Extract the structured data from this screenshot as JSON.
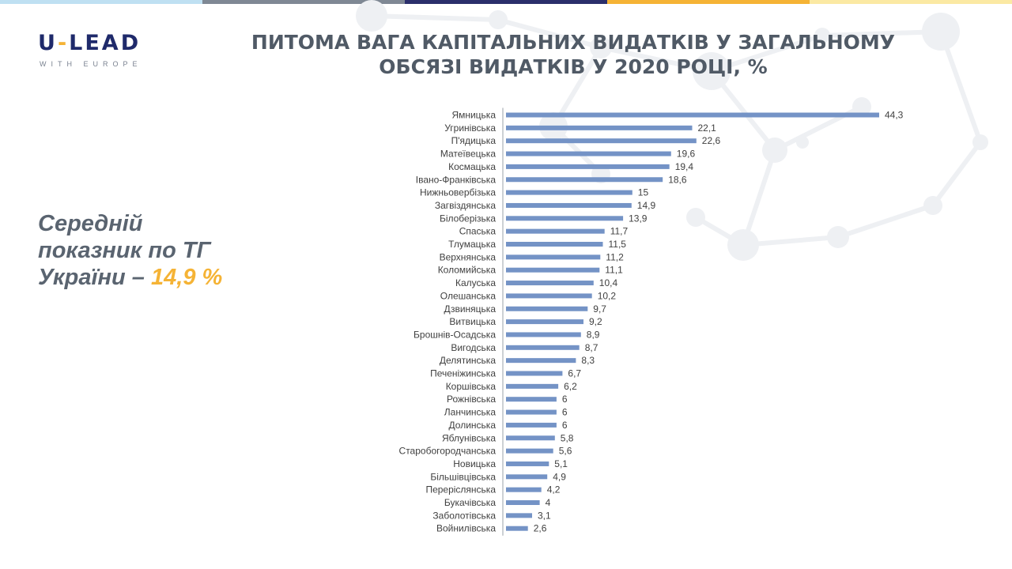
{
  "logo": {
    "main_left": "U",
    "main_dash": "-",
    "main_right": "LEAD",
    "sub": "WITH EUROPE"
  },
  "title": {
    "line1": "ПИТОМА ВАГА КАПІТАЛЬНИХ ВИДАТКІВ У ЗАГАЛЬНОМУ",
    "line2": "ОБСЯЗІ ВИДАТКІВ У 2020 РОЦІ, %"
  },
  "average": {
    "line1": "Середній",
    "line2": "показник по ТГ",
    "line3_prefix": "України – ",
    "value": "14,9 %"
  },
  "colors": {
    "bar": "#7493c6",
    "title": "#505a66",
    "accent": "#f5b335",
    "logo": "#1f2a6b",
    "topbar": [
      "#bfe0f2",
      "#7f8894",
      "#2b2f6b",
      "#f5b335",
      "#fbe9a3"
    ]
  },
  "chart_data": {
    "type": "bar",
    "orientation": "horizontal",
    "categories": [
      "Ямницька",
      "Угринівська",
      "П'ядицька",
      "Матеївецька",
      "Космацька",
      "Івано-Франківська",
      "Нижньовербізька",
      "Загвіздянська",
      "Білоберізька",
      "Спаська",
      "Тлумацька",
      "Верхнянська",
      "Коломийська",
      "Калуська",
      "Олешанська",
      "Дзвиняцька",
      "Витвицька",
      "Брошнів-Осадська",
      "Вигодська",
      "Делятинська",
      "Печеніжинська",
      "Коршівська",
      "Рожнівська",
      "Ланчинська",
      "Долинська",
      "Яблунівська",
      "Старобогородчанська",
      "Новицька",
      "Більшівцівська",
      "Переріслянська",
      "Букачівська",
      "Заболотівська",
      "Войнилівська"
    ],
    "values": [
      44.3,
      22.1,
      22.6,
      19.6,
      19.4,
      18.6,
      15,
      14.9,
      13.9,
      11.7,
      11.5,
      11.2,
      11.1,
      10.4,
      10.2,
      9.7,
      9.2,
      8.9,
      8.7,
      8.3,
      6.7,
      6.2,
      6,
      6,
      6,
      5.8,
      5.6,
      5.1,
      4.9,
      4.2,
      4,
      3.1,
      2.6
    ],
    "value_labels": [
      "44,3",
      "22,1",
      "22,6",
      "19,6",
      "19,4",
      "18,6",
      "15",
      "14,9",
      "13,9",
      "11,7",
      "11,5",
      "11,2",
      "11,1",
      "10,4",
      "10,2",
      "9,7",
      "9,2",
      "8,9",
      "8,7",
      "8,3",
      "6,7",
      "6,2",
      "6",
      "6",
      "6",
      "5,8",
      "5,6",
      "5,1",
      "4,9",
      "4,2",
      "4",
      "3,1",
      "2,6"
    ],
    "xlim": [
      0,
      44.3
    ],
    "grid": false,
    "legend": "none"
  }
}
